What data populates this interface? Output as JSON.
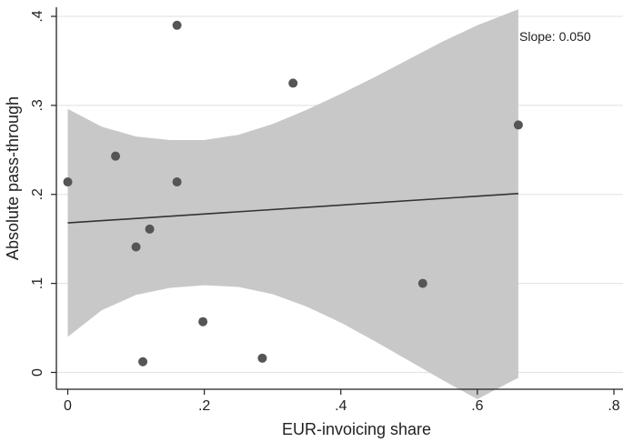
{
  "chart_data": {
    "type": "scatter",
    "xlabel": "EUR-invoicing share",
    "ylabel": "Absolute pass-through",
    "xlim": [
      0,
      0.8
    ],
    "ylim": [
      0,
      0.4
    ],
    "x_ticks": [
      {
        "value": 0,
        "label": "0"
      },
      {
        "value": 0.2,
        "label": ".2"
      },
      {
        "value": 0.4,
        "label": ".4"
      },
      {
        "value": 0.6,
        "label": ".6"
      },
      {
        "value": 0.8,
        "label": ".8"
      }
    ],
    "y_ticks": [
      {
        "value": 0,
        "label": "0"
      },
      {
        "value": 0.1,
        "label": ".1"
      },
      {
        "value": 0.2,
        "label": ".2"
      },
      {
        "value": 0.3,
        "label": ".3"
      },
      {
        "value": 0.4,
        "label": ".4"
      }
    ],
    "grid": "horizontal",
    "points": [
      {
        "x": 0.0,
        "y": 0.214
      },
      {
        "x": 0.07,
        "y": 0.243
      },
      {
        "x": 0.1,
        "y": 0.141
      },
      {
        "x": 0.11,
        "y": 0.012
      },
      {
        "x": 0.12,
        "y": 0.161
      },
      {
        "x": 0.16,
        "y": 0.39
      },
      {
        "x": 0.16,
        "y": 0.214
      },
      {
        "x": 0.198,
        "y": 0.057
      },
      {
        "x": 0.285,
        "y": 0.016
      },
      {
        "x": 0.33,
        "y": 0.325
      },
      {
        "x": 0.52,
        "y": 0.1
      },
      {
        "x": 0.66,
        "y": 0.278
      }
    ],
    "fit_line": {
      "x": [
        0,
        0.66
      ],
      "y": [
        0.168,
        0.201
      ]
    },
    "confidence_band": {
      "x": [
        0,
        0.05,
        0.1,
        0.15,
        0.2,
        0.25,
        0.3,
        0.35,
        0.4,
        0.45,
        0.5,
        0.55,
        0.6,
        0.66
      ],
      "upper": [
        0.296,
        0.276,
        0.265,
        0.261,
        0.261,
        0.267,
        0.279,
        0.295,
        0.313,
        0.332,
        0.352,
        0.372,
        0.39,
        0.408
      ],
      "lower": [
        0.04,
        0.07,
        0.087,
        0.095,
        0.098,
        0.096,
        0.088,
        0.074,
        0.056,
        0.035,
        0.013,
        -0.009,
        -0.03,
        -0.006
      ]
    },
    "annotation": "Slope: 0.050",
    "colors": {
      "points": "#555555",
      "band": "#c8c8c8",
      "line": "#333333",
      "grid": "#e6e6e6",
      "axis": "#222222"
    }
  }
}
